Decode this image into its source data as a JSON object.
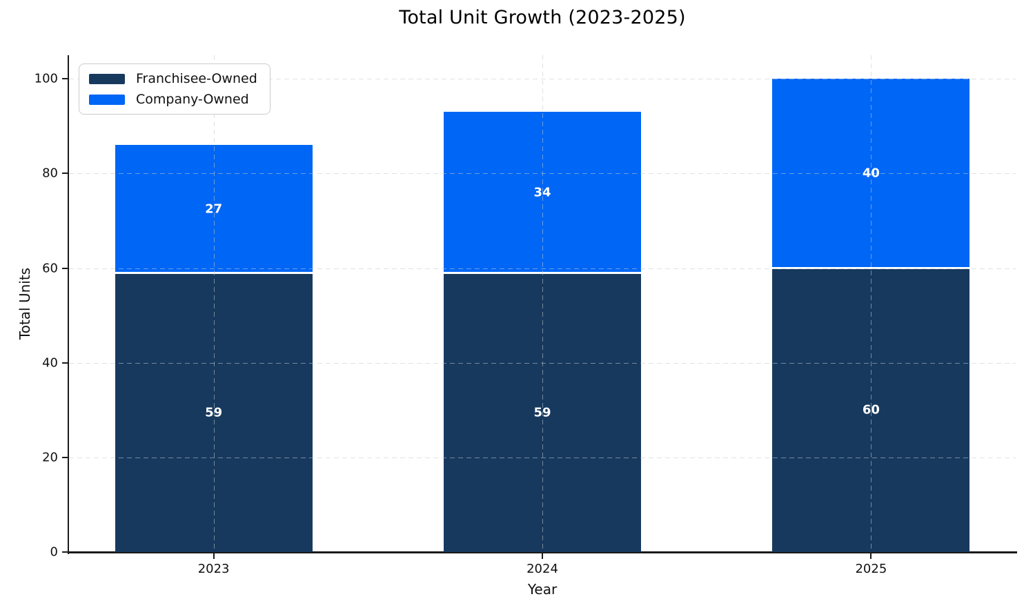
{
  "chart_data": {
    "type": "bar",
    "stacked": true,
    "title": "Total Unit Growth (2023-2025)",
    "xlabel": "Year",
    "ylabel": "Total Units",
    "categories": [
      "2023",
      "2024",
      "2025"
    ],
    "series": [
      {
        "name": "Franchisee-Owned",
        "color": "#17395E",
        "values": [
          59,
          59,
          60
        ]
      },
      {
        "name": "Company-Owned",
        "color": "#0066F5",
        "values": [
          27,
          34,
          40
        ]
      }
    ],
    "totals": [
      86,
      93,
      100
    ],
    "ylim": [
      0,
      105
    ],
    "yticks": [
      0,
      20,
      40,
      60,
      80,
      100
    ],
    "grid": true,
    "grid_style": "dashed",
    "legend_position": "upper left",
    "bar_value_label_color": "#ffffff",
    "segment_edge_color": "#ffffff"
  }
}
